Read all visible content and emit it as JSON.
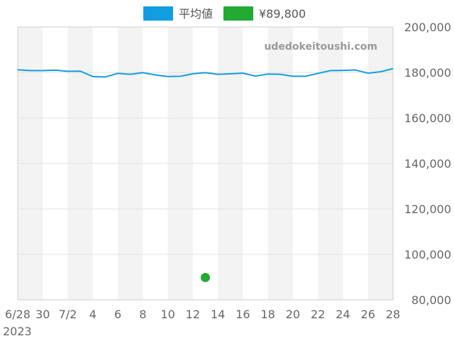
{
  "chart_data": {
    "type": "line",
    "watermark": "udedokeitoushi.com",
    "x_tick_labels": [
      "6/28",
      "30",
      "7/2",
      "4",
      "6",
      "8",
      "10",
      "12",
      "14",
      "16",
      "18",
      "20",
      "22",
      "24",
      "26",
      "28"
    ],
    "x_year_label": "2023",
    "y_tick_labels": [
      "200,000",
      "180,000",
      "160,000",
      "140,000",
      "120,000",
      "100,000",
      "80,000"
    ],
    "ylim": [
      80000,
      200000
    ],
    "y_ticks": [
      200000,
      180000,
      160000,
      140000,
      120000,
      100000,
      80000
    ],
    "grid": true,
    "legend_position": "top-center",
    "series": [
      {
        "name": "平均値",
        "color": "#119ee0",
        "kind": "line",
        "x": [
          "6/28",
          "6/29",
          "6/30",
          "7/1",
          "7/2",
          "7/3",
          "7/4",
          "7/5",
          "7/6",
          "7/7",
          "7/8",
          "7/9",
          "7/10",
          "7/11",
          "7/12",
          "7/13",
          "7/14",
          "7/15",
          "7/16",
          "7/17",
          "7/18",
          "7/19",
          "7/20",
          "7/21",
          "7/22",
          "7/23",
          "7/24",
          "7/25",
          "7/26",
          "7/27",
          "7/28"
        ],
        "values": [
          181200,
          180800,
          180800,
          181000,
          180500,
          180600,
          178200,
          178000,
          179600,
          179200,
          179900,
          178900,
          178200,
          178300,
          179400,
          179900,
          179200,
          179400,
          179700,
          178400,
          179300,
          179200,
          178300,
          178300,
          179600,
          180800,
          180900,
          181100,
          179700,
          180300,
          181700
        ]
      },
      {
        "name": "¥89,800",
        "color": "#22aa33",
        "kind": "point",
        "x": [
          "7/13"
        ],
        "values": [
          89800
        ]
      }
    ]
  }
}
